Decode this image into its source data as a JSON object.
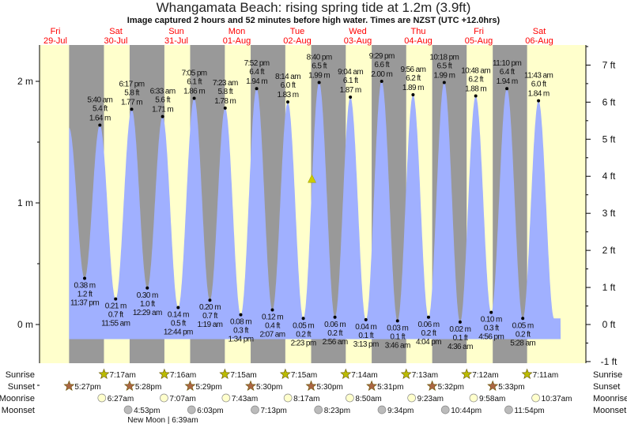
{
  "title": "Whangamata Beach: rising  spring tide at 1.2m (3.9ft)",
  "subtitle": "Image captured 2 hours and 52 minutes before high water. Times are NZST (UTC +12.0hrs)",
  "colors": {
    "day": "#ffffcc",
    "night": "#999999",
    "water": "#a0b0ff",
    "daylabel": "#ff0000",
    "marker": "#cccc00",
    "sunrise": "#bbbb00",
    "sunset": "#aa6644",
    "moonrise": "#ffffcc",
    "moonset": "#bbbbbb"
  },
  "chart_data": {
    "type": "area",
    "title": "Whangamata Beach: rising  spring tide at 1.2m (3.9ft)",
    "ylabel_left": "m",
    "ylabel_right": "ft",
    "ylim_m": [
      -0.32,
      2.3
    ],
    "left_ticks": [
      "0 m",
      "1 m",
      "2 m"
    ],
    "right_ticks": [
      "-1 ft",
      "0 ft",
      "1 ft",
      "2 ft",
      "3 ft",
      "4 ft",
      "5 ft",
      "6 ft",
      "7 ft"
    ],
    "days": [
      {
        "dow": "Fri",
        "date": "29-Jul"
      },
      {
        "dow": "Sat",
        "date": "30-Jul"
      },
      {
        "dow": "Sun",
        "date": "31-Jul"
      },
      {
        "dow": "Mon",
        "date": "01-Aug"
      },
      {
        "dow": "Tue",
        "date": "02-Aug"
      },
      {
        "dow": "Wed",
        "date": "03-Aug"
      },
      {
        "dow": "Thu",
        "date": "04-Aug"
      },
      {
        "dow": "Fri",
        "date": "05-Aug"
      },
      {
        "dow": "Sat",
        "date": "06-Aug"
      }
    ],
    "current": {
      "day": 4,
      "time": "5:48pm",
      "m": 1.2,
      "ft": 3.9
    },
    "extremes": [
      {
        "day": 0,
        "time": "11:37 pm",
        "m": "0.38 m",
        "ft": "1.2 ft",
        "type": "low"
      },
      {
        "day": 1,
        "time": "5:40 am",
        "m": "1.64 m",
        "ft": "5.4 ft",
        "type": "high"
      },
      {
        "day": 1,
        "time": "11:55 am",
        "m": "0.21 m",
        "ft": "0.7 ft",
        "type": "low"
      },
      {
        "day": 1,
        "time": "6:17 pm",
        "m": "1.77 m",
        "ft": "5.8 ft",
        "type": "high"
      },
      {
        "day": 2,
        "time": "12:29 am",
        "m": "0.30 m",
        "ft": "1.0 ft",
        "type": "low"
      },
      {
        "day": 2,
        "time": "6:33 am",
        "m": "1.71 m",
        "ft": "5.6 ft",
        "type": "high"
      },
      {
        "day": 2,
        "time": "12:44 pm",
        "m": "0.14 m",
        "ft": "0.5 ft",
        "type": "low"
      },
      {
        "day": 2,
        "time": "7:05 pm",
        "m": "1.86 m",
        "ft": "6.1 ft",
        "type": "high"
      },
      {
        "day": 3,
        "time": "1:19 am",
        "m": "0.20 m",
        "ft": "0.7 ft",
        "type": "low"
      },
      {
        "day": 3,
        "time": "7:23 am",
        "m": "1.78 m",
        "ft": "5.8 ft",
        "type": "high"
      },
      {
        "day": 3,
        "time": "1:34 pm",
        "m": "0.08 m",
        "ft": "0.3 ft",
        "type": "low"
      },
      {
        "day": 3,
        "time": "7:52 pm",
        "m": "1.94 m",
        "ft": "6.4 ft",
        "type": "high"
      },
      {
        "day": 4,
        "time": "2:07 am",
        "m": "0.12 m",
        "ft": "0.4 ft",
        "type": "low"
      },
      {
        "day": 4,
        "time": "8:14 am",
        "m": "1.83 m",
        "ft": "6.0 ft",
        "type": "high"
      },
      {
        "day": 4,
        "time": "2:23 pm",
        "m": "0.05 m",
        "ft": "0.2 ft",
        "type": "low"
      },
      {
        "day": 4,
        "time": "8:40 pm",
        "m": "1.99 m",
        "ft": "6.5 ft",
        "type": "high"
      },
      {
        "day": 5,
        "time": "2:56 am",
        "m": "0.06 m",
        "ft": "0.2 ft",
        "type": "low"
      },
      {
        "day": 5,
        "time": "9:04 am",
        "m": "1.87 m",
        "ft": "6.1 ft",
        "type": "high"
      },
      {
        "day": 5,
        "time": "3:13 pm",
        "m": "0.04 m",
        "ft": "0.1 ft",
        "type": "low"
      },
      {
        "day": 5,
        "time": "9:29 pm",
        "m": "2.00 m",
        "ft": "6.6 ft",
        "type": "high"
      },
      {
        "day": 6,
        "time": "3:46 am",
        "m": "0.03 m",
        "ft": "0.1 ft",
        "type": "low"
      },
      {
        "day": 6,
        "time": "9:56 am",
        "m": "1.89 m",
        "ft": "6.2 ft",
        "type": "high"
      },
      {
        "day": 6,
        "time": "4:04 pm",
        "m": "0.06 m",
        "ft": "0.2 ft",
        "type": "low"
      },
      {
        "day": 6,
        "time": "10:18 pm",
        "m": "1.99 m",
        "ft": "6.5 ft",
        "type": "high"
      },
      {
        "day": 7,
        "time": "4:36 am",
        "m": "0.02 m",
        "ft": "0.1 ft",
        "type": "low"
      },
      {
        "day": 7,
        "time": "10:48 am",
        "m": "1.88 m",
        "ft": "6.2 ft",
        "type": "high"
      },
      {
        "day": 7,
        "time": "4:56 pm",
        "m": "0.10 m",
        "ft": "0.3 ft",
        "type": "low"
      },
      {
        "day": 7,
        "time": "11:10 pm",
        "m": "1.94 m",
        "ft": "6.4 ft",
        "type": "high"
      },
      {
        "day": 8,
        "time": "5:28 am",
        "m": "0.05 m",
        "ft": "0.2 ft",
        "type": "low"
      },
      {
        "day": 8,
        "time": "11:43 am",
        "m": "1.84 m",
        "ft": "6.0 ft",
        "type": "high"
      }
    ],
    "rows": [
      {
        "label": "Sunrise",
        "kind": "sunrise",
        "events": [
          {
            "day": 1,
            "time": "7:17am"
          },
          {
            "day": 2,
            "time": "7:16am"
          },
          {
            "day": 3,
            "time": "7:15am"
          },
          {
            "day": 4,
            "time": "7:15am"
          },
          {
            "day": 5,
            "time": "7:14am"
          },
          {
            "day": 6,
            "time": "7:13am"
          },
          {
            "day": 7,
            "time": "7:12am"
          },
          {
            "day": 8,
            "time": "7:11am"
          }
        ]
      },
      {
        "label": "Sunset",
        "kind": "sunset",
        "events": [
          {
            "day": 0,
            "time": "5:27pm"
          },
          {
            "day": 1,
            "time": "5:28pm"
          },
          {
            "day": 2,
            "time": "5:29pm"
          },
          {
            "day": 3,
            "time": "5:30pm"
          },
          {
            "day": 4,
            "time": "5:30pm"
          },
          {
            "day": 5,
            "time": "5:31pm"
          },
          {
            "day": 6,
            "time": "5:32pm"
          },
          {
            "day": 7,
            "time": "5:33pm"
          }
        ]
      },
      {
        "label": "Moonrise",
        "kind": "moonrise",
        "events": [
          {
            "day": 1,
            "time": "6:27am"
          },
          {
            "day": 2,
            "time": "7:07am"
          },
          {
            "day": 3,
            "time": "7:43am"
          },
          {
            "day": 4,
            "time": "8:17am"
          },
          {
            "day": 5,
            "time": "8:50am"
          },
          {
            "day": 6,
            "time": "9:23am"
          },
          {
            "day": 7,
            "time": "9:58am"
          },
          {
            "day": 8,
            "time": "10:37am"
          }
        ]
      },
      {
        "label": "Moonset",
        "kind": "moonset",
        "events": [
          {
            "day": 1,
            "time": "4:53pm"
          },
          {
            "day": 2,
            "time": "6:03pm"
          },
          {
            "day": 3,
            "time": "7:13pm"
          },
          {
            "day": 4,
            "time": "8:23pm"
          },
          {
            "day": 5,
            "time": "9:34pm"
          },
          {
            "day": 6,
            "time": "10:44pm"
          },
          {
            "day": 7,
            "time": "11:54pm"
          }
        ]
      }
    ],
    "moon_phase": {
      "day": 2,
      "time": "6:39am",
      "text": "New Moon | 6:39am"
    }
  }
}
